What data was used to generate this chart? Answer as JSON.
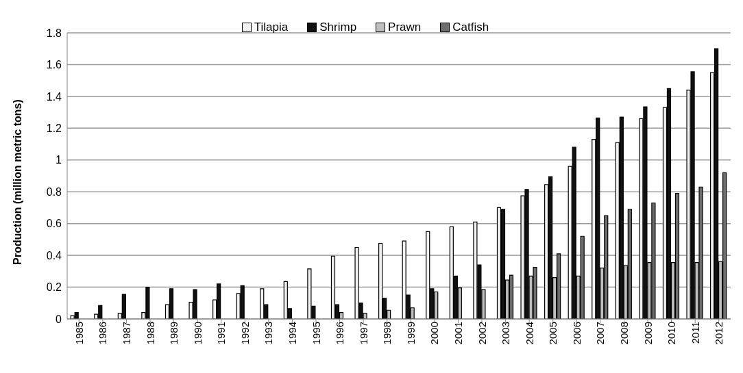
{
  "chart_data": {
    "type": "bar",
    "ylabel": "Production (million metric tons)",
    "categories": [
      "1985",
      "1986",
      "1987",
      "1988",
      "1989",
      "1990",
      "1991",
      "1992",
      "1993",
      "1994",
      "1995",
      "1996",
      "1997",
      "1998",
      "1999",
      "2000",
      "2001",
      "2002",
      "2003",
      "2004",
      "2005",
      "2006",
      "2007",
      "2008",
      "2009",
      "2010",
      "2011",
      "2012"
    ],
    "series": [
      {
        "name": "Tilapia",
        "color": "#f2f2f2",
        "values": [
          0.02,
          0.03,
          0.035,
          0.04,
          0.09,
          0.105,
          0.12,
          0.16,
          0.19,
          0.235,
          0.315,
          0.395,
          0.45,
          0.475,
          0.49,
          0.55,
          0.58,
          0.61,
          0.7,
          0.775,
          0.845,
          0.96,
          1.13,
          1.11,
          1.26,
          1.33,
          1.44,
          1.55
        ]
      },
      {
        "name": "Shrimp",
        "color": "#111111",
        "values": [
          0.04,
          0.085,
          0.155,
          0.2,
          0.19,
          0.185,
          0.22,
          0.21,
          0.09,
          0.065,
          0.08,
          0.09,
          0.1,
          0.13,
          0.15,
          0.19,
          0.27,
          0.34,
          0.69,
          0.815,
          0.895,
          1.08,
          1.265,
          1.27,
          1.335,
          1.45,
          1.555,
          1.7
        ]
      },
      {
        "name": "Prawn",
        "color": "#bfbfbf",
        "values": [
          null,
          null,
          null,
          null,
          null,
          null,
          null,
          null,
          null,
          null,
          null,
          0.04,
          0.035,
          0.055,
          0.07,
          0.17,
          0.195,
          0.185,
          0.245,
          0.27,
          0.26,
          0.27,
          0.32,
          0.335,
          0.355,
          0.355,
          0.355,
          0.36
        ]
      },
      {
        "name": "Catfish",
        "color": "#6e6e6e",
        "values": [
          null,
          null,
          null,
          null,
          null,
          null,
          null,
          null,
          null,
          null,
          null,
          null,
          null,
          null,
          null,
          null,
          null,
          null,
          0.275,
          0.325,
          0.41,
          0.52,
          0.65,
          0.69,
          0.73,
          0.79,
          0.83,
          0.92
        ]
      }
    ],
    "ylim": [
      0,
      1.8
    ],
    "yticks": [
      0,
      0.2,
      0.4,
      0.6,
      0.8,
      1,
      1.2,
      1.4,
      1.6,
      1.8
    ],
    "grid": "y",
    "legend": "top"
  }
}
